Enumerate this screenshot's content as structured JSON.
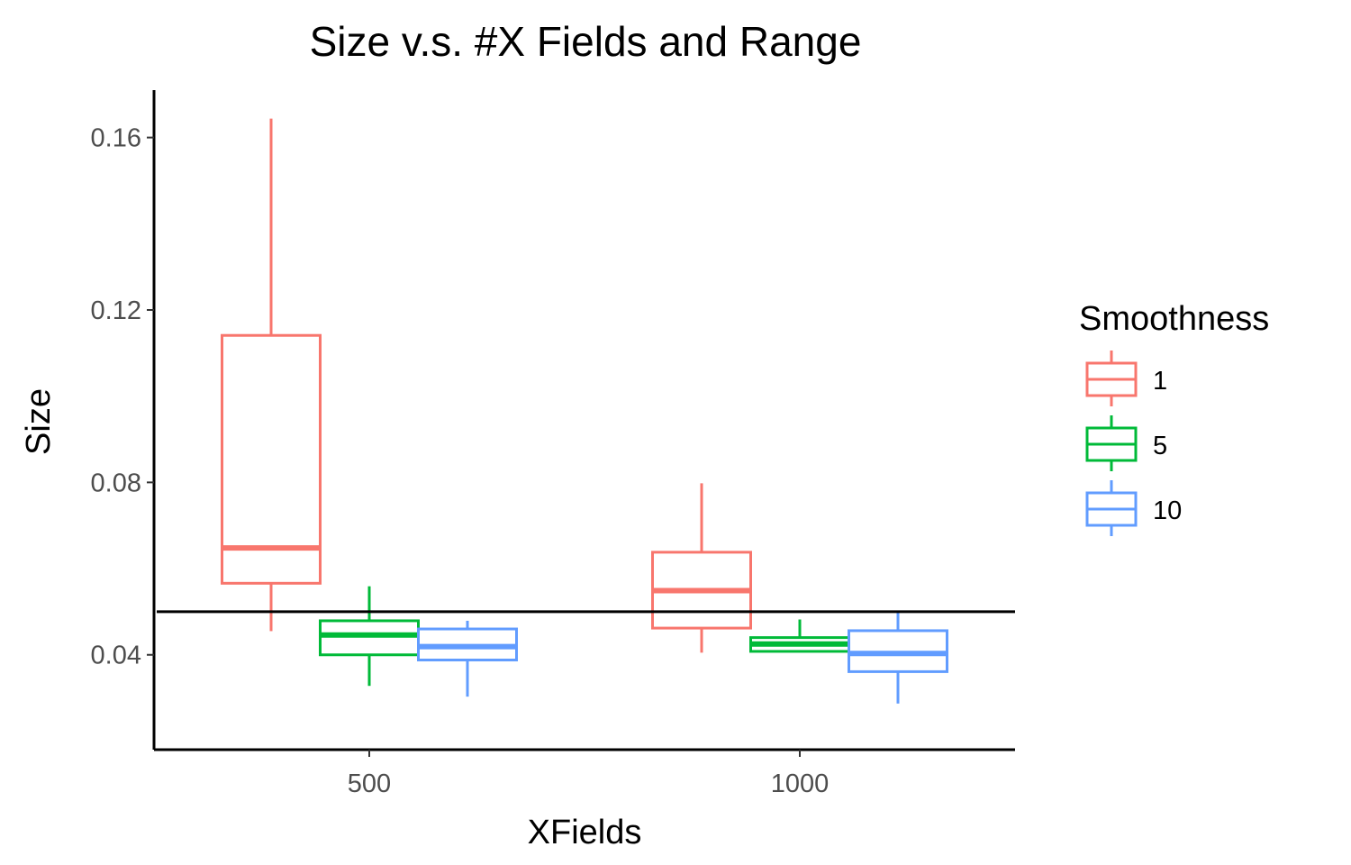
{
  "chart_data": {
    "type": "boxplot",
    "title": "Size v.s. #X Fields and Range",
    "xlabel": "XFields",
    "ylabel": "Size",
    "categories": [
      "500",
      "1000"
    ],
    "ylim": [
      0.018,
      0.171
    ],
    "y_ticks": [
      0.04,
      0.08,
      0.12,
      0.16
    ],
    "y_tick_labels": [
      "0.04",
      "0.08",
      "0.12",
      "0.16"
    ],
    "reference_line": 0.05,
    "grid": false,
    "legend": {
      "title": "Smoothness",
      "position": "right"
    },
    "series": [
      {
        "name": "1",
        "color": "#F8766D",
        "boxes": [
          {
            "category": "500",
            "min": 0.0455,
            "q1": 0.0566,
            "median": 0.0648,
            "q3": 0.1141,
            "max": 0.1644
          },
          {
            "category": "1000",
            "min": 0.0405,
            "q1": 0.0462,
            "median": 0.0549,
            "q3": 0.0638,
            "max": 0.0798
          }
        ]
      },
      {
        "name": "5",
        "color": "#00BA38",
        "boxes": [
          {
            "category": "500",
            "min": 0.0328,
            "q1": 0.04,
            "median": 0.0446,
            "q3": 0.0479,
            "max": 0.0559
          },
          {
            "category": "1000",
            "min": 0.0408,
            "q1": 0.0408,
            "median": 0.0425,
            "q3": 0.044,
            "max": 0.0482
          }
        ]
      },
      {
        "name": "10",
        "color": "#619CFF",
        "boxes": [
          {
            "category": "500",
            "min": 0.0303,
            "q1": 0.0388,
            "median": 0.0419,
            "q3": 0.046,
            "max": 0.0479
          },
          {
            "category": "1000",
            "min": 0.0287,
            "q1": 0.0361,
            "median": 0.0403,
            "q3": 0.0456,
            "max": 0.0499
          }
        ]
      }
    ]
  }
}
